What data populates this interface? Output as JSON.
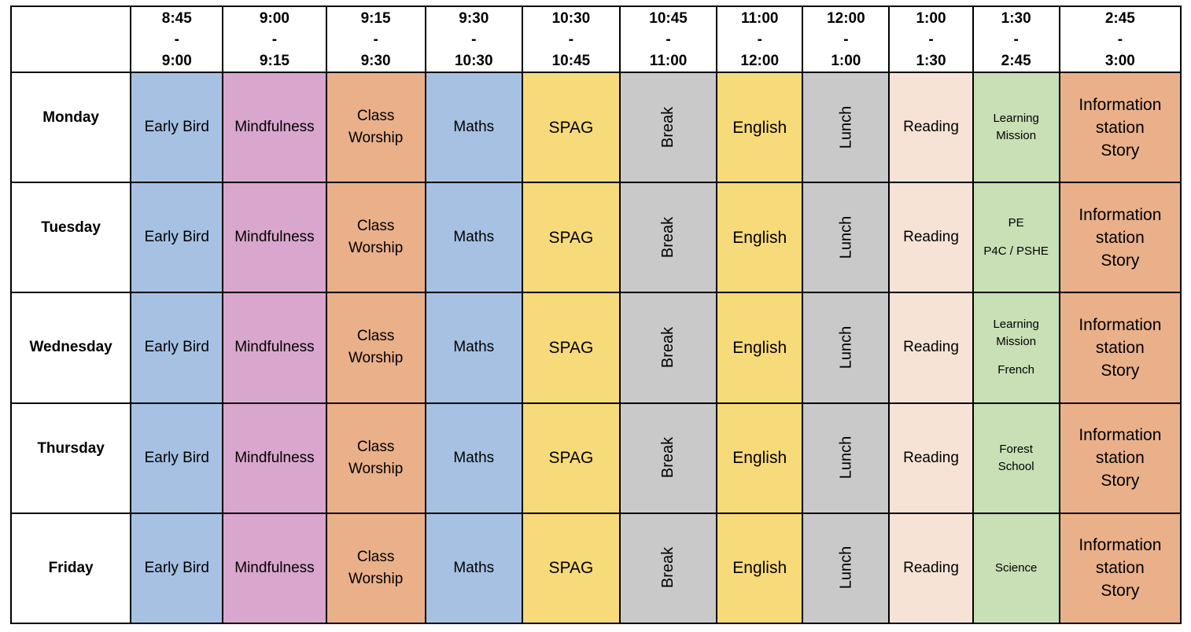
{
  "header": {
    "corner": "",
    "times": [
      {
        "start": "8:45",
        "sep": "-",
        "end": "9:00"
      },
      {
        "start": "9:00",
        "sep": "-",
        "end": "9:15"
      },
      {
        "start": "9:15",
        "sep": "-",
        "end": "9:30"
      },
      {
        "start": "9:30",
        "sep": "-",
        "end": "10:30"
      },
      {
        "start": "10:30",
        "sep": "-",
        "end": "10:45"
      },
      {
        "start": "10:45",
        "sep": "-",
        "end": "11:00"
      },
      {
        "start": "11:00",
        "sep": "-",
        "end": "12:00"
      },
      {
        "start": "12:00",
        "sep": "-",
        "end": "1:00"
      },
      {
        "start": "1:00",
        "sep": "-",
        "end": "1:30"
      },
      {
        "start": "1:30",
        "sep": "-",
        "end": "2:45"
      },
      {
        "start": "2:45",
        "sep": "-",
        "end": "3:00"
      }
    ]
  },
  "days": [
    "Monday",
    "Tuesday",
    "Wednesday",
    "Thursday",
    "Friday"
  ],
  "subjects": {
    "early_bird": "Early Bird",
    "mindfulness": "Mindfulness",
    "class_worship_1": "Class",
    "class_worship_2": "Worship",
    "maths": "Maths",
    "spag": "SPAG",
    "break": "Break",
    "english": "English",
    "lunch": "Lunch",
    "reading": "Reading",
    "info_1": "Information",
    "info_2": "station",
    "info_3": "Story"
  },
  "afternoon": {
    "monday": [
      "Learning",
      "Mission"
    ],
    "tuesday": [
      "PE",
      "P4C / PSHE"
    ],
    "wednesday": [
      "Learning",
      "Mission",
      "French"
    ],
    "thursday": [
      "Forest",
      "School"
    ],
    "friday": [
      "Science"
    ]
  },
  "colors": {
    "blue": "#a6c1e2",
    "pink": "#d9a6ce",
    "orange": "#e9b08a",
    "yellow": "#f7da7a",
    "grey": "#c9c9c9",
    "peach": "#f6e3d6",
    "green": "#c9dfb5"
  }
}
